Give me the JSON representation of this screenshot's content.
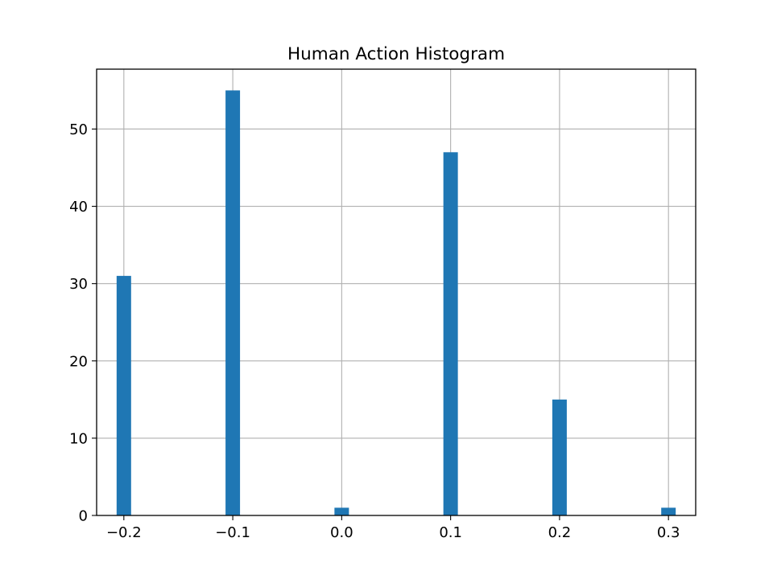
{
  "chart_data": {
    "type": "bar",
    "title": "Human Action Histogram",
    "xlabel": "",
    "ylabel": "",
    "x": [
      -0.2,
      -0.1,
      0.0,
      0.1,
      0.2,
      0.3
    ],
    "values": [
      31,
      55,
      1,
      47,
      15,
      1
    ],
    "bin_width": 0.0133,
    "xlim": [
      -0.225,
      0.325
    ],
    "ylim": [
      0,
      57.75
    ],
    "xticks": [
      -0.2,
      -0.1,
      0.0,
      0.1,
      0.2,
      0.3
    ],
    "xtick_labels": [
      "−0.2",
      "−0.1",
      "0.0",
      "0.1",
      "0.2",
      "0.3"
    ],
    "yticks": [
      0,
      10,
      20,
      30,
      40,
      50
    ],
    "ytick_labels": [
      "0",
      "10",
      "20",
      "30",
      "40",
      "50"
    ],
    "grid": true,
    "legend": "none",
    "bar_color": "#1f77b4"
  }
}
